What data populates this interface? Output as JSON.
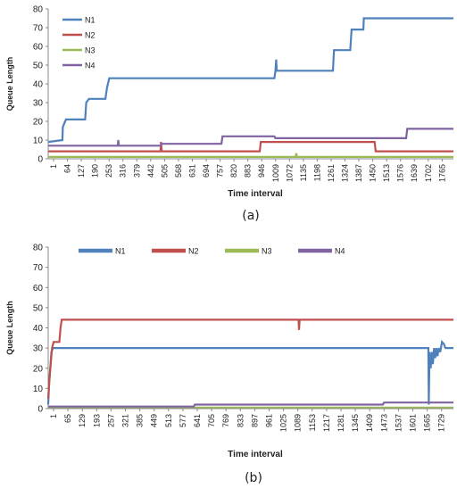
{
  "chart_data": [
    {
      "type": "line",
      "caption": "(a)",
      "xlabel": "Time interval",
      "ylabel": "Queue Length",
      "ylim": [
        0,
        80
      ],
      "yticks": [
        0,
        10,
        20,
        30,
        40,
        50,
        60,
        70,
        80
      ],
      "xlim": [
        1,
        1800
      ],
      "xtick_labels": [
        "1",
        "64",
        "127",
        "190",
        "253",
        "316",
        "379",
        "442",
        "505",
        "568",
        "631",
        "694",
        "757",
        "820",
        "883",
        "946",
        "1009",
        "1072",
        "1135",
        "1198",
        "1261",
        "1324",
        "1387",
        "1450",
        "1513",
        "1576",
        "1639",
        "1702",
        "1765"
      ],
      "grid": false,
      "legend": "top-left, stacked vertically",
      "series": [
        {
          "name": "N1",
          "color": "#4f81bd",
          "points": [
            [
              1,
              9
            ],
            [
              64,
              10
            ],
            [
              66,
              17
            ],
            [
              80,
              21
            ],
            [
              165,
              21
            ],
            [
              170,
              30
            ],
            [
              182,
              32
            ],
            [
              255,
              32
            ],
            [
              262,
              38
            ],
            [
              272,
              43
            ],
            [
              1005,
              43
            ],
            [
              1010,
              47
            ],
            [
              1013,
              53
            ],
            [
              1016,
              47
            ],
            [
              1200,
              47
            ],
            [
              1265,
              47
            ],
            [
              1270,
              58
            ],
            [
              1342,
              58
            ],
            [
              1348,
              69
            ],
            [
              1400,
              69
            ],
            [
              1402,
              75
            ],
            [
              1800,
              75
            ]
          ]
        },
        {
          "name": "N2",
          "color": "#c0504d",
          "points": [
            [
              1,
              4
            ],
            [
              500,
              4
            ],
            [
              502,
              9
            ],
            [
              505,
              4
            ],
            [
              940,
              4
            ],
            [
              945,
              9
            ],
            [
              1450,
              9
            ],
            [
              1455,
              4
            ],
            [
              1800,
              4
            ]
          ]
        },
        {
          "name": "N3",
          "color": "#9bbb59",
          "points": [
            [
              1,
              1
            ],
            [
              1100,
              1
            ],
            [
              1102,
              3
            ],
            [
              1105,
              1
            ],
            [
              1800,
              1
            ]
          ]
        },
        {
          "name": "N4",
          "color": "#8064a2",
          "points": [
            [
              1,
              7
            ],
            [
              310,
              7
            ],
            [
              312,
              10
            ],
            [
              315,
              7
            ],
            [
              500,
              7
            ],
            [
              505,
              8
            ],
            [
              770,
              8
            ],
            [
              775,
              12
            ],
            [
              1005,
              12
            ],
            [
              1010,
              11
            ],
            [
              1590,
              11
            ],
            [
              1595,
              16
            ],
            [
              1800,
              16
            ]
          ]
        }
      ]
    },
    {
      "type": "line",
      "caption": "(b)",
      "xlabel": "Time interval",
      "ylabel": "Queue Length",
      "ylim": [
        0,
        80
      ],
      "yticks": [
        0,
        10,
        20,
        30,
        40,
        50,
        60,
        70,
        80
      ],
      "xlim": [
        1,
        1780
      ],
      "xtick_labels": [
        "1",
        "65",
        "129",
        "193",
        "257",
        "321",
        "385",
        "449",
        "513",
        "577",
        "641",
        "705",
        "769",
        "833",
        "897",
        "961",
        "1025",
        "1089",
        "1153",
        "1217",
        "1281",
        "1345",
        "1409",
        "1473",
        "1537",
        "1601",
        "1665",
        "1729"
      ],
      "grid": false,
      "legend": "top, horizontal",
      "series": [
        {
          "name": "N1",
          "color": "#4f81bd",
          "points": [
            [
              1,
              2
            ],
            [
              5,
              12
            ],
            [
              10,
              20
            ],
            [
              15,
              28
            ],
            [
              22,
              30
            ],
            [
              1670,
              30
            ],
            [
              1672,
              2
            ],
            [
              1675,
              28
            ],
            [
              1680,
              20
            ],
            [
              1685,
              28
            ],
            [
              1690,
              22
            ],
            [
              1695,
              30
            ],
            [
              1700,
              25
            ],
            [
              1705,
              30
            ],
            [
              1710,
              26
            ],
            [
              1716,
              30
            ],
            [
              1722,
              28
            ],
            [
              1730,
              33
            ],
            [
              1738,
              32
            ],
            [
              1745,
              30
            ],
            [
              1780,
              30
            ]
          ]
        },
        {
          "name": "N2",
          "color": "#c0504d",
          "points": [
            [
              1,
              5
            ],
            [
              6,
              14
            ],
            [
              12,
              22
            ],
            [
              18,
              30
            ],
            [
              25,
              33
            ],
            [
              50,
              33
            ],
            [
              55,
              40
            ],
            [
              60,
              44
            ],
            [
              1100,
              44
            ],
            [
              1102,
              39
            ],
            [
              1105,
              44
            ],
            [
              1780,
              44
            ]
          ]
        },
        {
          "name": "N3",
          "color": "#9bbb59",
          "points": [
            [
              1,
              0.5
            ],
            [
              1780,
              0.5
            ]
          ]
        },
        {
          "name": "N4",
          "color": "#8064a2",
          "points": [
            [
              1,
              1
            ],
            [
              640,
              1
            ],
            [
              645,
              2
            ],
            [
              1470,
              2
            ],
            [
              1475,
              3
            ],
            [
              1780,
              3
            ]
          ]
        }
      ]
    }
  ]
}
